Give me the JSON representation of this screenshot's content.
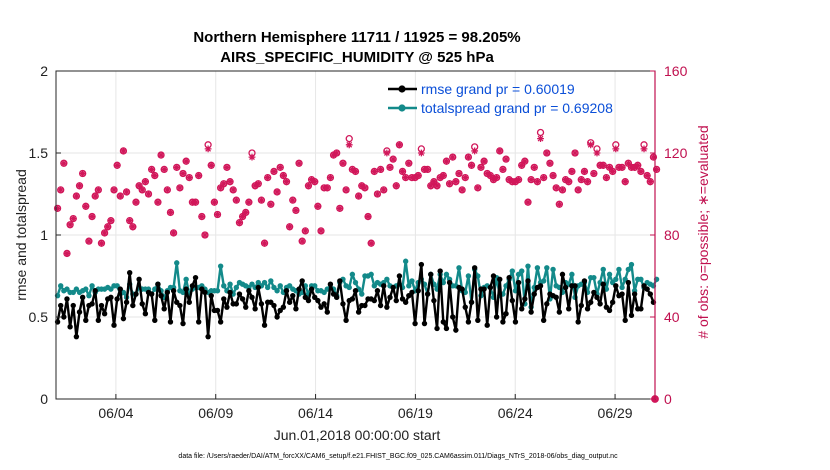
{
  "chart_data": {
    "type": "line",
    "title_line1": "Northern Hemisphere 11711 / 11925 = 98.205%",
    "title_line2": "AIRS_SPECIFIC_HUMIDITY @ 525 hPa",
    "ylabel_left": "rmse and totalspread",
    "ylabel_right": "# of obs: o=possible; ∗=evaluated",
    "xlabel": "Jun.01,2018 00:00:00 start",
    "footer": "data file: /Users/raeder/DAI/ATM_forcXX/CAM6_setup/f.e21.FHIST_BGC.f09_025.CAM6assim.011/Diags_NTrS_2018-06/obs_diag_output.nc",
    "x_range_days": [
      1,
      31
    ],
    "xticks": [
      {
        "day": 4,
        "label": "06/04"
      },
      {
        "day": 9,
        "label": "06/09"
      },
      {
        "day": 14,
        "label": "06/14"
      },
      {
        "day": 19,
        "label": "06/19"
      },
      {
        "day": 24,
        "label": "06/24"
      },
      {
        "day": 29,
        "label": "06/29"
      }
    ],
    "ylim_left": [
      0,
      2
    ],
    "yticks_left": [
      {
        "value": 0,
        "label": "0"
      },
      {
        "value": 0.5,
        "label": "0.5"
      },
      {
        "value": 1,
        "label": "1"
      },
      {
        "value": 1.5,
        "label": "1.5"
      },
      {
        "value": 2,
        "label": "2"
      }
    ],
    "ylim_right": [
      0,
      160
    ],
    "yticks_right": [
      {
        "value": 0,
        "label": "0"
      },
      {
        "value": 40,
        "label": "40"
      },
      {
        "value": 80,
        "label": "80"
      },
      {
        "value": 120,
        "label": "120"
      },
      {
        "value": 160,
        "label": "160"
      }
    ],
    "grid": true,
    "legend_position": "top-right",
    "legend": [
      {
        "label": "rmse grand pr = 0.60019",
        "color": "#000000"
      },
      {
        "label": "totalspread grand pr = 0.69208",
        "color": "#138a8a"
      }
    ],
    "rmse": [
      0.47,
      0.57,
      0.5,
      0.61,
      0.44,
      0.57,
      0.38,
      0.53,
      0.62,
      0.48,
      0.57,
      0.58,
      0.66,
      0.48,
      0.57,
      0.52,
      0.61,
      0.62,
      0.45,
      0.61,
      0.67,
      0.49,
      0.59,
      0.77,
      0.57,
      0.64,
      0.73,
      0.58,
      0.52,
      0.65,
      0.64,
      0.48,
      0.7,
      0.63,
      0.55,
      0.65,
      0.47,
      0.66,
      0.59,
      0.57,
      0.46,
      0.67,
      0.59,
      0.69,
      0.74,
      0.47,
      0.67,
      0.65,
      0.38,
      0.63,
      0.54,
      0.54,
      0.47,
      0.61,
      0.56,
      0.65,
      0.58,
      0.58,
      0.64,
      0.61,
      0.56,
      0.66,
      0.62,
      0.55,
      0.68,
      0.58,
      0.45,
      0.59,
      0.59,
      0.57,
      0.5,
      0.54,
      0.56,
      0.66,
      0.59,
      0.63,
      0.55,
      0.67,
      0.72,
      0.62,
      0.6,
      0.67,
      0.62,
      0.6,
      0.56,
      0.58,
      0.53,
      0.7,
      0.64,
      0.62,
      0.72,
      0.58,
      0.48,
      0.6,
      0.61,
      0.66,
      0.53,
      0.57,
      0.57,
      0.61,
      0.61,
      0.6,
      0.66,
      0.57,
      0.69,
      0.56,
      0.62,
      0.68,
      0.6,
      0.75,
      0.61,
      0.59,
      0.63,
      0.65,
      0.46,
      0.66,
      0.82,
      0.46,
      0.64,
      0.76,
      0.6,
      0.43,
      0.78,
      0.47,
      0.43,
      0.71,
      0.5,
      0.42,
      0.68,
      0.67,
      0.56,
      0.47,
      0.59,
      0.8,
      0.48,
      0.67,
      0.67,
      0.45,
      0.68,
      0.75,
      0.5,
      0.73,
      0.47,
      0.52,
      0.74,
      0.6,
      0.47,
      0.71,
      0.55,
      0.61,
      0.72,
      0.53,
      0.64,
      0.68,
      0.69,
      0.48,
      0.58,
      0.64,
      0.63,
      0.62,
      0.53,
      0.76,
      0.68,
      0.55,
      0.69,
      0.69,
      0.47,
      0.57,
      0.72,
      0.55,
      0.59,
      0.65,
      0.62,
      0.58,
      0.7,
      0.56,
      0.54,
      0.59,
      0.69,
      0.63,
      0.64,
      0.48,
      0.71,
      0.51,
      0.64,
      0.55,
      0.55,
      0.69,
      0.67,
      0.64,
      0.59
    ],
    "totalspread": [
      0.63,
      0.69,
      0.66,
      0.67,
      0.65,
      0.65,
      0.67,
      0.65,
      0.66,
      0.67,
      0.63,
      0.69,
      0.65,
      0.67,
      0.67,
      0.67,
      0.68,
      0.67,
      0.69,
      0.69,
      0.64,
      0.65,
      0.62,
      0.7,
      0.64,
      0.64,
      0.68,
      0.67,
      0.67,
      0.67,
      0.64,
      0.67,
      0.7,
      0.66,
      0.62,
      0.66,
      0.68,
      0.68,
      0.83,
      0.66,
      0.65,
      0.73,
      0.64,
      0.67,
      0.68,
      0.68,
      0.69,
      0.67,
      0.65,
      0.66,
      0.66,
      0.66,
      0.81,
      0.69,
      0.66,
      0.7,
      0.64,
      0.68,
      0.71,
      0.7,
      0.69,
      0.68,
      0.7,
      0.68,
      0.71,
      0.69,
      0.71,
      0.68,
      0.72,
      0.68,
      0.66,
      0.69,
      0.65,
      0.68,
      0.69,
      0.67,
      0.66,
      0.64,
      0.65,
      0.69,
      0.64,
      0.69,
      0.69,
      0.66,
      0.66,
      0.65,
      0.67,
      0.68,
      0.67,
      0.63,
      0.71,
      0.73,
      0.69,
      0.68,
      0.76,
      0.71,
      0.67,
      0.64,
      0.75,
      0.75,
      0.76,
      0.69,
      0.71,
      0.7,
      0.71,
      0.73,
      0.69,
      0.68,
      0.69,
      0.7,
      0.68,
      0.84,
      0.69,
      0.72,
      0.66,
      0.71,
      0.73,
      0.7,
      0.64,
      0.76,
      0.7,
      0.67,
      0.76,
      0.71,
      0.76,
      0.73,
      0.69,
      0.69,
      0.8,
      0.66,
      0.65,
      0.75,
      0.59,
      0.79,
      0.75,
      0.63,
      0.68,
      0.69,
      0.68,
      0.62,
      0.74,
      0.63,
      0.64,
      0.69,
      0.73,
      0.78,
      0.66,
      0.76,
      0.78,
      0.58,
      0.81,
      0.56,
      0.68,
      0.8,
      0.71,
      0.72,
      0.8,
      0.61,
      0.79,
      0.69,
      0.68,
      0.65,
      0.71,
      0.7,
      0.76,
      0.62,
      0.69,
      0.7,
      0.71,
      0.65,
      0.74,
      0.74,
      0.64,
      0.71,
      0.79,
      0.67,
      0.76,
      0.71,
      0.73,
      0.79,
      0.68,
      0.73,
      0.79,
      0.82,
      0.66,
      0.73,
      0.73,
      0.68,
      0.71,
      0.7,
      0.69,
      0.73
    ],
    "obs_possible": [
      93,
      102,
      115,
      71,
      85,
      88,
      99,
      104,
      110,
      94,
      77,
      89,
      99,
      102,
      76,
      81,
      84,
      87,
      102,
      114,
      99,
      121,
      101,
      87,
      84,
      96,
      104,
      102,
      106,
      100,
      112,
      109,
      96,
      119,
      112,
      102,
      91,
      81,
      113,
      103,
      110,
      116,
      108,
      96,
      96,
      109,
      89,
      80,
      124,
      114,
      96,
      90,
      103,
      105,
      113,
      106,
      102,
      97,
      86,
      89,
      91,
      96,
      120,
      104,
      105,
      97,
      76,
      108,
      95,
      111,
      101,
      113,
      109,
      106,
      84,
      97,
      92,
      115,
      77,
      82,
      104,
      107,
      106,
      94,
      82,
      103,
      103,
      108,
      119,
      120,
      93,
      115,
      102,
      127,
      112,
      111,
      99,
      104,
      103,
      89,
      76,
      111,
      100,
      112,
      102,
      121,
      113,
      117,
      104,
      124,
      111,
      108,
      115,
      108,
      108,
      109,
      122,
      112,
      112,
      104,
      106,
      104,
      108,
      109,
      116,
      105,
      118,
      106,
      110,
      102,
      108,
      118,
      114,
      123,
      103,
      113,
      116,
      110,
      109,
      107,
      108,
      121,
      112,
      117,
      107,
      106,
      106,
      107,
      114,
      116,
      96,
      107,
      113,
      106,
      130,
      108,
      120,
      115,
      109,
      103,
      95,
      102,
      107,
      106,
      111,
      120,
      102,
      107,
      111,
      106,
      125,
      110,
      122,
      114,
      114,
      108,
      113,
      111,
      124,
      113,
      113,
      106,
      115,
      113,
      113,
      114,
      111,
      124,
      109,
      106,
      118,
      112
    ],
    "obs_evaluated": [
      93,
      102,
      115,
      71,
      85,
      88,
      99,
      104,
      110,
      94,
      77,
      89,
      99,
      102,
      76,
      81,
      84,
      87,
      102,
      114,
      99,
      121,
      101,
      87,
      84,
      96,
      104,
      102,
      106,
      100,
      112,
      109,
      96,
      119,
      112,
      102,
      91,
      81,
      113,
      103,
      110,
      116,
      108,
      96,
      96,
      109,
      89,
      80,
      122,
      114,
      96,
      90,
      103,
      105,
      113,
      106,
      102,
      97,
      86,
      89,
      91,
      96,
      118,
      104,
      105,
      97,
      76,
      108,
      95,
      111,
      101,
      113,
      109,
      106,
      84,
      97,
      92,
      115,
      77,
      82,
      104,
      107,
      106,
      94,
      82,
      103,
      103,
      108,
      119,
      120,
      93,
      115,
      102,
      124,
      112,
      111,
      99,
      104,
      103,
      89,
      76,
      111,
      100,
      112,
      102,
      120,
      113,
      117,
      104,
      124,
      111,
      108,
      115,
      108,
      108,
      109,
      120,
      112,
      112,
      104,
      106,
      104,
      108,
      109,
      116,
      105,
      118,
      106,
      110,
      102,
      108,
      118,
      114,
      121,
      103,
      113,
      116,
      110,
      109,
      107,
      108,
      121,
      112,
      117,
      107,
      106,
      106,
      107,
      114,
      116,
      96,
      107,
      113,
      106,
      127,
      108,
      120,
      115,
      109,
      103,
      95,
      102,
      107,
      106,
      111,
      120,
      102,
      107,
      111,
      106,
      124,
      110,
      120,
      114,
      114,
      108,
      113,
      111,
      122,
      113,
      113,
      106,
      115,
      113,
      113,
      114,
      111,
      122,
      109,
      106,
      118,
      112
    ]
  },
  "colors": {
    "rmse": "#000000",
    "totalspread": "#138a8a",
    "obs": "#d1175a",
    "legend_text": "#0b4fd8",
    "right_axis": "#c0104f",
    "grid": "#e6e6e6"
  }
}
